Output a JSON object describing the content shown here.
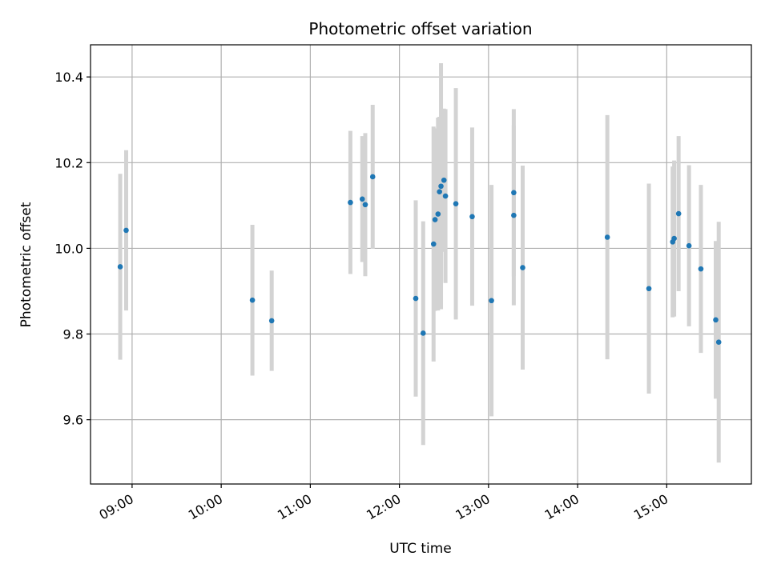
{
  "chart_data": {
    "type": "scatter",
    "title": "Photometric offset variation",
    "xlabel": "UTC time",
    "ylabel": "Photometric offset",
    "x_unit": "UTC time (HH:MM)",
    "xlim": [
      "08:32",
      "15:57"
    ],
    "ylim": [
      9.45,
      10.475
    ],
    "x_ticks": [
      "09:00",
      "10:00",
      "11:00",
      "12:00",
      "13:00",
      "14:00",
      "15:00"
    ],
    "y_ticks": [
      "9.6",
      "9.8",
      "10.0",
      "10.2",
      "10.4"
    ],
    "grid": true,
    "marker_color": "#1f77b4",
    "errorbar_color": "#d3d3d3",
    "series": [
      {
        "points": [
          {
            "x": "08:52",
            "y": 9.957,
            "err": 0.217
          },
          {
            "x": "08:56",
            "y": 10.042,
            "err": 0.187
          },
          {
            "x": "10:21",
            "y": 9.879,
            "err": 0.176
          },
          {
            "x": "10:34",
            "y": 9.831,
            "err": 0.117
          },
          {
            "x": "11:27",
            "y": 10.107,
            "err": 0.167
          },
          {
            "x": "11:35",
            "y": 10.115,
            "err": 0.147
          },
          {
            "x": "11:37",
            "y": 10.102,
            "err": 0.167
          },
          {
            "x": "11:42",
            "y": 10.167,
            "err": 0.168
          },
          {
            "x": "12:11",
            "y": 9.883,
            "err": 0.229
          },
          {
            "x": "12:16",
            "y": 9.802,
            "err": 0.261
          },
          {
            "x": "12:23",
            "y": 10.01,
            "err": 0.274
          },
          {
            "x": "12:24",
            "y": 10.067,
            "err": 0.213
          },
          {
            "x": "12:26",
            "y": 10.08,
            "err": 0.225
          },
          {
            "x": "12:27",
            "y": 10.132,
            "err": 0.175
          },
          {
            "x": "12:28",
            "y": 10.145,
            "err": 0.287
          },
          {
            "x": "12:30",
            "y": 10.159,
            "err": 0.167
          },
          {
            "x": "12:31",
            "y": 10.122,
            "err": 0.203
          },
          {
            "x": "12:38",
            "y": 10.104,
            "err": 0.27
          },
          {
            "x": "12:49",
            "y": 10.074,
            "err": 0.208
          },
          {
            "x": "13:02",
            "y": 9.878,
            "err": 0.27
          },
          {
            "x": "13:17",
            "y": 10.077,
            "err": 0.21
          },
          {
            "x": "13:17",
            "y": 10.13,
            "err": 0.195
          },
          {
            "x": "13:23",
            "y": 9.955,
            "err": 0.238
          },
          {
            "x": "14:20",
            "y": 10.026,
            "err": 0.285
          },
          {
            "x": "14:48",
            "y": 9.906,
            "err": 0.245
          },
          {
            "x": "15:04",
            "y": 10.015,
            "err": 0.176
          },
          {
            "x": "15:05",
            "y": 10.023,
            "err": 0.182
          },
          {
            "x": "15:08",
            "y": 10.081,
            "err": 0.181
          },
          {
            "x": "15:15",
            "y": 10.006,
            "err": 0.188
          },
          {
            "x": "15:23",
            "y": 9.952,
            "err": 0.196
          },
          {
            "x": "15:33",
            "y": 9.833,
            "err": 0.184
          },
          {
            "x": "15:35",
            "y": 9.781,
            "err": 0.281
          }
        ]
      }
    ]
  }
}
